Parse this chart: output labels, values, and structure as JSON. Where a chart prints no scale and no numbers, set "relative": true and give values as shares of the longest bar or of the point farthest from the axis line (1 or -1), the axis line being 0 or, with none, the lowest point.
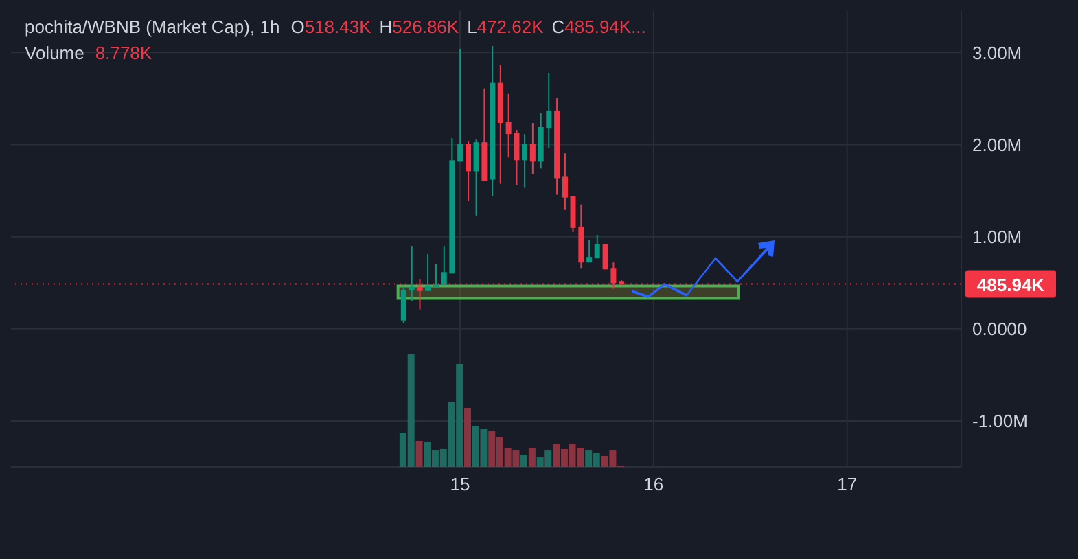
{
  "chart_data": [
    {
      "type": "candlestick",
      "title": "pochita/WBNB (Market Cap), 1h",
      "annotations": [
        "O518.43K H526.86K L472.62K C485.94K..."
      ],
      "x": [
        14.708,
        14.75,
        14.792,
        14.833,
        14.875,
        14.917,
        14.958,
        15.0,
        15.042,
        15.083,
        15.125,
        15.167,
        15.208,
        15.25,
        15.292,
        15.333,
        15.375,
        15.417,
        15.458,
        15.5,
        15.542,
        15.583,
        15.625,
        15.667,
        15.708,
        15.75,
        15.792,
        15.833
      ],
      "ohlc": [
        [
          0.09,
          0.46,
          0.06,
          0.42
        ],
        [
          0.415,
          0.9,
          0.3,
          0.455
        ],
        [
          0.455,
          0.54,
          0.21,
          0.41
        ],
        [
          0.41,
          0.81,
          0.41,
          0.465
        ],
        [
          0.45,
          0.7,
          0.45,
          0.48
        ],
        [
          0.475,
          0.9,
          0.475,
          0.615
        ],
        [
          0.6,
          2.07,
          0.6,
          1.83
        ],
        [
          1.815,
          3.04,
          1.815,
          2.01
        ],
        [
          2.01,
          2.04,
          1.39,
          1.71
        ],
        [
          1.71,
          2.055,
          1.23,
          2.025
        ],
        [
          2.025,
          2.61,
          1.605,
          1.605
        ],
        [
          1.62,
          3.07,
          1.44,
          2.67
        ],
        [
          2.67,
          2.865,
          1.575,
          2.235
        ],
        [
          2.25,
          2.55,
          1.86,
          2.115
        ],
        [
          2.13,
          2.16,
          1.56,
          1.83
        ],
        [
          1.83,
          2.115,
          1.53,
          2.01
        ],
        [
          2.01,
          2.235,
          1.68,
          1.815
        ],
        [
          1.815,
          2.34,
          1.74,
          2.19
        ],
        [
          2.175,
          2.775,
          1.965,
          2.37
        ],
        [
          2.37,
          2.505,
          1.455,
          1.635
        ],
        [
          1.65,
          1.905,
          1.29,
          1.425
        ],
        [
          1.44,
          1.44,
          1.05,
          1.095
        ],
        [
          1.11,
          1.35,
          0.66,
          0.72
        ],
        [
          0.72,
          0.96,
          0.72,
          0.78
        ],
        [
          0.765,
          1.02,
          0.765,
          0.915
        ],
        [
          0.915,
          0.915,
          0.645,
          0.645
        ],
        [
          0.66,
          0.72,
          0.435,
          0.495
        ],
        [
          0.51843,
          0.52686,
          0.47262,
          0.48594
        ]
      ],
      "colors": [
        "#089981",
        "#089981",
        "#f23645",
        "#089981",
        "#089981",
        "#089981",
        "#089981",
        "#089981",
        "#f23645",
        "#089981",
        "#f23645",
        "#089981",
        "#f23645",
        "#f23645",
        "#f23645",
        "#089981",
        "#f23645",
        "#089981",
        "#089981",
        "#f23645",
        "#f23645",
        "#f23645",
        "#f23645",
        "#089981",
        "#089981",
        "#f23645",
        "#f23645",
        "#f23645"
      ],
      "xlim": [
        12.68,
        17.59
      ],
      "xticks": [
        15,
        16,
        17
      ],
      "ylim": [
        -1.5,
        3.45
      ],
      "yticks": [
        {
          "value": -1,
          "label": "-1.00M"
        },
        {
          "value": 0,
          "label": "0.0000"
        },
        {
          "value": 1,
          "label": "1.00M"
        },
        {
          "value": 2,
          "label": "2.00M"
        },
        {
          "value": 3,
          "label": "3.00M"
        }
      ],
      "grid": true,
      "bands": [
        {
          "axis": "y",
          "from": 0.33,
          "to": 0.465,
          "color": "#4caf50"
        }
      ],
      "ref_lines": [
        {
          "axis": "y",
          "value": 0.48594,
          "label": "485.94K",
          "color": "#f23645",
          "line_style": "dotted"
        }
      ]
    },
    {
      "type": "bar",
      "title": "Volume",
      "annotations": [
        "8.778K"
      ],
      "relative": true,
      "tick_labels": false,
      "x": [
        14.708,
        14.75,
        14.792,
        14.833,
        14.875,
        14.917,
        14.958,
        15.0,
        15.042,
        15.083,
        15.125,
        15.167,
        15.208,
        15.25,
        15.292,
        15.333,
        15.375,
        15.417,
        15.458,
        15.5,
        15.542,
        15.583,
        15.625,
        15.667,
        15.708,
        15.75,
        15.792,
        15.833
      ],
      "values": [
        0.305,
        1,
        0.232,
        0.22,
        0.146,
        0.159,
        0.573,
        0.915,
        0.524,
        0.366,
        0.341,
        0.317,
        0.268,
        0.171,
        0.146,
        0.11,
        0.171,
        0.085,
        0.146,
        0.207,
        0.159,
        0.207,
        0.171,
        0.146,
        0.122,
        0.098,
        0.146,
        0.012
      ],
      "colors": [
        "#1e6b61",
        "#1e6b61",
        "#8a3442",
        "#1e6b61",
        "#1e6b61",
        "#1e6b61",
        "#1e6b61",
        "#1e6b61",
        "#8a3442",
        "#1e6b61",
        "#1e6b61",
        "#8a3442",
        "#8a3442",
        "#8a3442",
        "#8a3442",
        "#1e6b61",
        "#8a3442",
        "#1e6b61",
        "#1e6b61",
        "#8a3442",
        "#8a3442",
        "#8a3442",
        "#8a3442",
        "#1e6b61",
        "#1e6b61",
        "#8a3442",
        "#8a3442",
        "#8a3442"
      ],
      "xlim": [
        12.68,
        17.59
      ]
    }
  ]
}
